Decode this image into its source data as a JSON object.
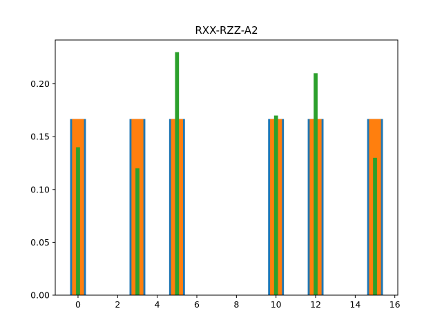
{
  "chart_data": {
    "type": "bar",
    "title": "RXX-RZZ-A2",
    "xlabel": "",
    "ylabel": "",
    "xlim": [
      -1.15,
      16.15
    ],
    "ylim": [
      0,
      0.2415
    ],
    "x_ticks": [
      0,
      2,
      4,
      6,
      8,
      10,
      12,
      14,
      16
    ],
    "x_tick_labels": [
      "0",
      "2",
      "4",
      "6",
      "8",
      "10",
      "12",
      "14",
      "16"
    ],
    "y_ticks": [
      0.0,
      0.05,
      0.1,
      0.15,
      0.2
    ],
    "y_tick_labels": [
      "0.00",
      "0.05",
      "0.10",
      "0.15",
      "0.20"
    ],
    "grid": false,
    "legend": "none",
    "series": [
      {
        "color": "#1f77b4",
        "bar_width": 0.8,
        "x": [
          0,
          3,
          5,
          10,
          12,
          15
        ],
        "values": [
          0.1667,
          0.1667,
          0.1667,
          0.1667,
          0.1667,
          0.1667
        ]
      },
      {
        "color": "#ff7f0e",
        "bar_width": 0.6,
        "x": [
          0,
          3,
          5,
          10,
          12,
          15
        ],
        "values": [
          0.1667,
          0.1667,
          0.1667,
          0.1667,
          0.1667,
          0.1667
        ]
      },
      {
        "color": "#2ca02c",
        "bar_width": 0.2,
        "x": [
          0,
          3,
          5,
          10,
          12,
          15
        ],
        "values": [
          0.14,
          0.12,
          0.23,
          0.17,
          0.21,
          0.13
        ]
      }
    ]
  }
}
